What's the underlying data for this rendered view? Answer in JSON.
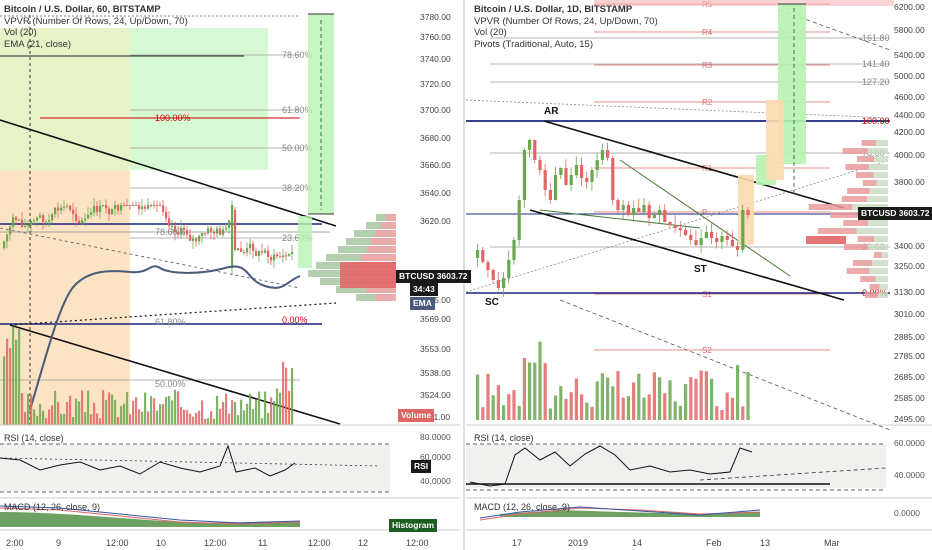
{
  "left_chart": {
    "title": "Bitcoin / U.S. Dollar, 60, BITSTAMP",
    "indicators": [
      "VPVR (Number Of Rows, 24, Up/Down, 70)",
      "Vol (20)",
      "EMA (21, close)"
    ],
    "price_axis": [
      "3780.00",
      "3760.00",
      "3740.00",
      "3720.00",
      "3700.00",
      "3680.00",
      "3660.00",
      "3640.00",
      "3620.00",
      "3603.72",
      "3585.00",
      "3569.00",
      "3553.00",
      "3538.00",
      "3524.00",
      "3511.00"
    ],
    "fib_labels": [
      "78.60%",
      "61.80%",
      "50.00%",
      "38.20%",
      "23.60%",
      "100.00%",
      "78.60%",
      "61.80%",
      "0.00%",
      "50.00%"
    ],
    "price_badge": "BTCUSD",
    "price_value": "3603.72",
    "countdown": "34:43",
    "ema_badge": "EMA",
    "volume_badge": "Volume",
    "rsi_title": "RSI (14, close)",
    "rsi_axis": [
      "80.0000",
      "60.0000",
      "40.0000"
    ],
    "rsi_badge": "RSI",
    "macd_title": "MACD (12, 26, close, 9)",
    "histogram_badge": "Histogram",
    "time_axis": [
      "9",
      "12:00",
      "10",
      "12:00",
      "11",
      "12:00",
      "12",
      "12:00"
    ],
    "time_axis_start": "2:00"
  },
  "right_chart": {
    "title": "Bitcoin / U.S. Dollar, 1D, BITSTAMP",
    "indicators": [
      "VPVR (Number Of Rows, 24, Up/Down, 70)",
      "Vol (20)",
      "Pivots (Traditional, Auto, 15)"
    ],
    "price_axis": [
      "6200.00",
      "5800.00",
      "5400.00",
      "5000.00",
      "4600.00",
      "4400.00",
      "4200.00",
      "4000.00",
      "3800.00",
      "3600.00",
      "3400.00",
      "3250.00",
      "3130.00",
      "3010.00",
      "2885.00",
      "2785.00",
      "2685.00",
      "2585.00",
      "2495.00"
    ],
    "pivot_labels": [
      "R5",
      "R4",
      "R3",
      "R2",
      "R1",
      "P",
      "S1",
      "S2"
    ],
    "fib_labels": [
      "161.80",
      "141.40",
      "127.20",
      "100.00",
      "78.60",
      "23.60",
      "0.00%"
    ],
    "pattern_labels": [
      "AR",
      "SC",
      "ST"
    ],
    "price_badge": "BTCUSD",
    "price_value": "3603.72",
    "rsi_title": "RSI (14, close)",
    "rsi_axis": [
      "60.0000",
      "40.0000"
    ],
    "macd_title": "MACD (12, 26, close, 9)",
    "macd_axis": [
      "0.0000"
    ],
    "time_axis": [
      "17",
      "2019",
      "14",
      "Feb",
      "13",
      "Mar"
    ]
  },
  "colors": {
    "up": "#6aa84f",
    "down": "#e06666",
    "badge_dark": "#1a1a1a",
    "ema": "#4a5a7a",
    "sr_blue": "#1a237e",
    "target_green": "#b6f2b0",
    "zone_orange": "#fbd9b0",
    "fib_red": "#cc0000"
  }
}
